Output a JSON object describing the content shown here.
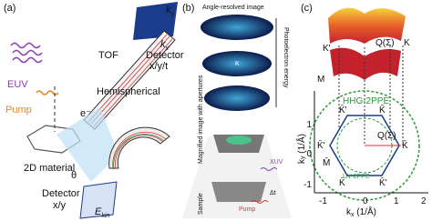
{
  "panel_a": {
    "tag": "(a)",
    "ky": {
      "main": "k",
      "sub": "y"
    },
    "kx": {
      "main": "k",
      "sub": "x"
    },
    "tof": "TOF",
    "tof_detector": "Detector",
    "tof_detector_axes": "x/y/t",
    "euv": "EUV",
    "pump": "Pump",
    "electron": "e⁻",
    "theta": "θ",
    "hemispherical": "Hemispherical",
    "material": "2D material",
    "detector": "Detector",
    "detector_axes": "x/y",
    "ekin": {
      "main": "E",
      "sub": "kin"
    }
  },
  "panel_b": {
    "tag": "(b)",
    "top_label": "Angle-resolved image",
    "energy_axis": "Photoelectron energy",
    "k_label": "K",
    "aperture_label": "Magnified image with apertures",
    "sample": "Sample",
    "xuv": "XUV",
    "pump": "Pump",
    "delay": "Δt"
  },
  "panel_c": {
    "tag": "(c)",
    "surface_labels": {
      "k_prime": "K'",
      "q": "Q(Σ)",
      "k": "K",
      "m": "M"
    },
    "circle_labels": {
      "hhg": "HHG-2PPE",
      "uv": "UV-2PPE"
    },
    "bz_labels": [
      "K̄'",
      "K̄",
      "K̄'",
      "Q(Σ)",
      "K̄",
      "M̄",
      "K̄",
      "K̄'"
    ],
    "y_label": {
      "main": "k",
      "sub": "y",
      "unit": " (1/Å)"
    },
    "x_label": {
      "main": "k",
      "sub": "x",
      "unit": " (1/Å)"
    },
    "x_ticks": [
      "-1",
      "0",
      "1",
      "2"
    ],
    "y_ticks": [
      "1",
      "0",
      "-1"
    ]
  }
}
